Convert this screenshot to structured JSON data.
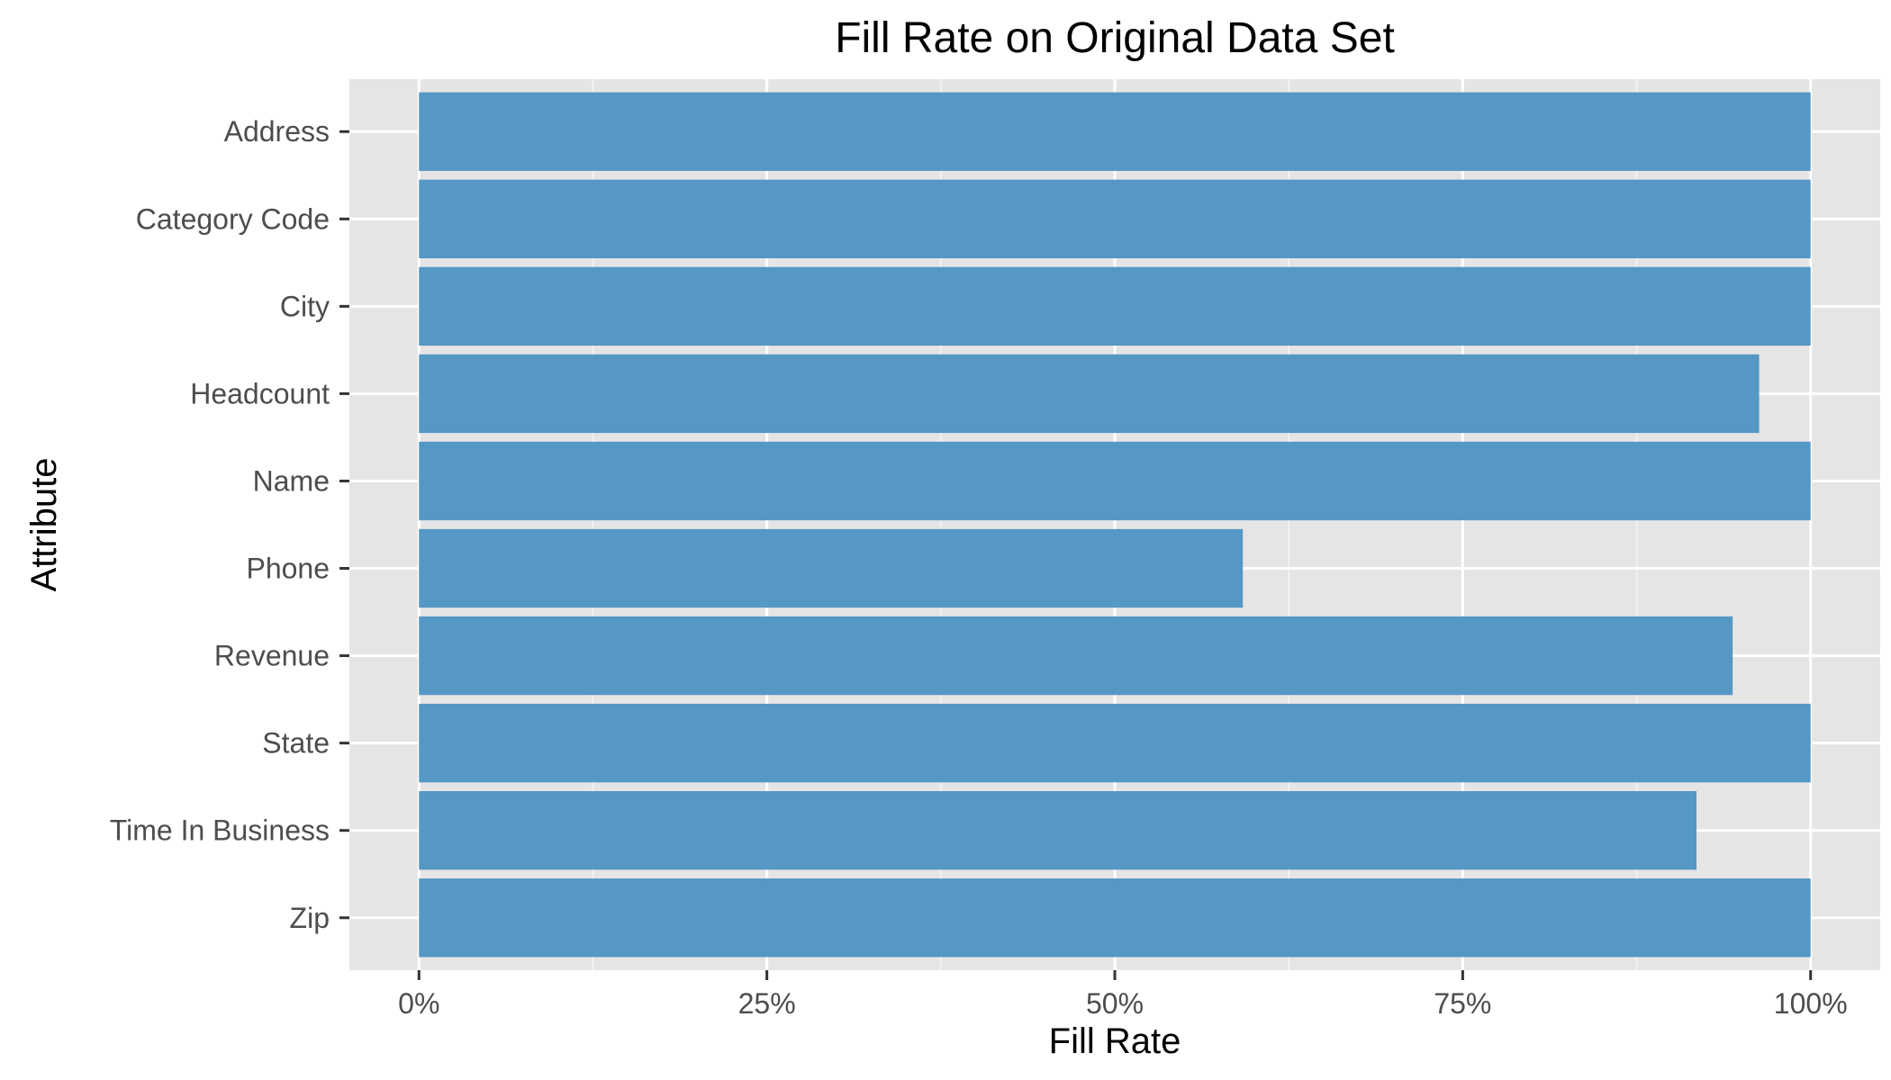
{
  "chart_data": {
    "type": "bar",
    "orientation": "horizontal",
    "title": "Fill Rate on Original Data Set",
    "xlabel": "Fill Rate",
    "ylabel": "Attribute",
    "categories": [
      "Address",
      "Category Code",
      "City",
      "Headcount",
      "Name",
      "Phone",
      "Revenue",
      "State",
      "Time In Business",
      "Zip"
    ],
    "values": [
      1.0,
      1.0,
      1.0,
      0.963,
      1.0,
      0.592,
      0.944,
      1.0,
      0.918,
      1.0
    ],
    "xlim": [
      -0.05,
      1.05
    ],
    "x_ticks": [
      0,
      0.25,
      0.5,
      0.75,
      1.0
    ],
    "x_tick_labels": [
      "0%",
      "25%",
      "50%",
      "75%",
      "100%"
    ],
    "grid": true,
    "legend": "none",
    "colors": {
      "bar": "#5597c5",
      "panel_background": "#e5e5e5",
      "grid_major": "#ffffff",
      "grid_minor": "#f2f2f2",
      "tick_text": "#4d4d4d",
      "tick_mark": "#333333"
    }
  }
}
